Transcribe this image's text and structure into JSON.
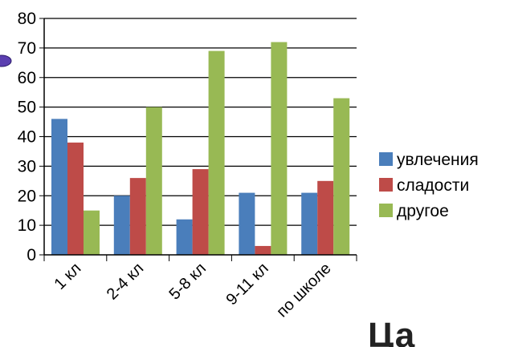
{
  "chart_data": {
    "type": "bar",
    "categories": [
      "1 кл",
      "2-4 кл",
      "5-8 кл",
      "9-11 кл",
      "по школе"
    ],
    "series": [
      {
        "name": "увлечения",
        "color": "#4a7ebb",
        "values": [
          46,
          20,
          12,
          21,
          21
        ]
      },
      {
        "name": "сладости",
        "color": "#be4b48",
        "values": [
          38,
          26,
          29,
          3,
          25
        ]
      },
      {
        "name": "другое",
        "color": "#98b954",
        "values": [
          15,
          50,
          69,
          72,
          53
        ]
      }
    ],
    "ylim": [
      0,
      80
    ],
    "yticks": [
      0,
      10,
      20,
      30,
      40,
      50,
      60,
      70,
      80
    ],
    "grid": true,
    "legend": "right"
  },
  "partial_text": "Ца",
  "side_decoration": "purple-ellipse"
}
